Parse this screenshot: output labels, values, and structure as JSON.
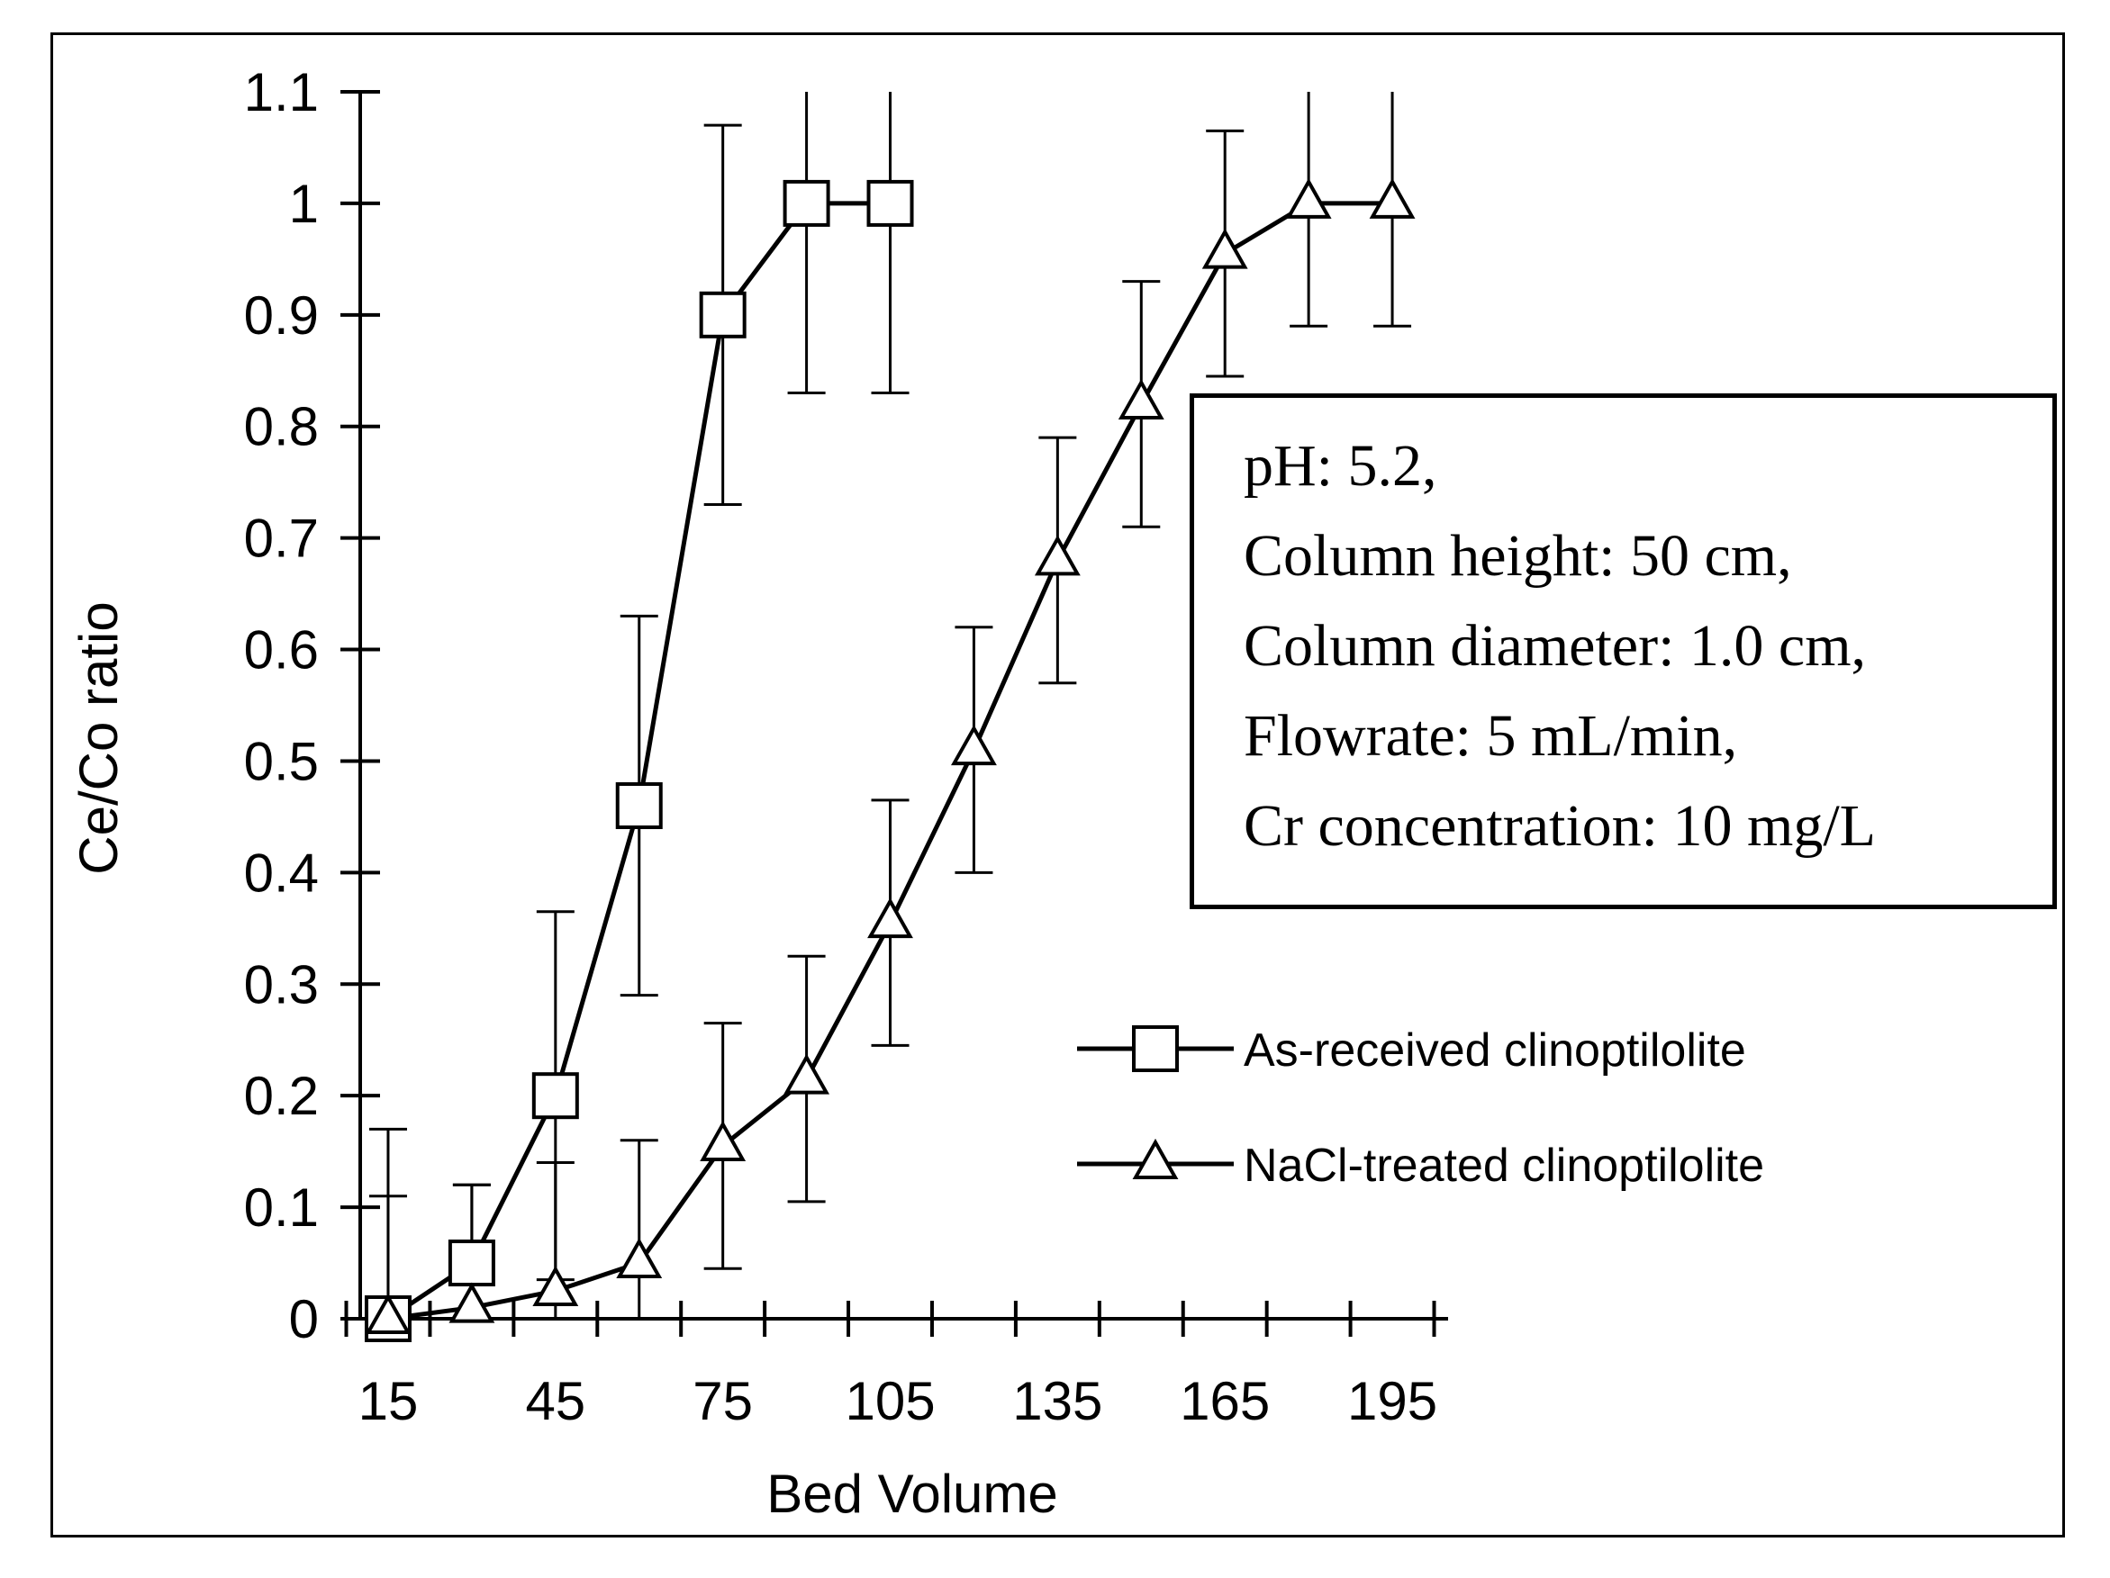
{
  "chart_data": {
    "type": "line",
    "title": "",
    "xlabel": "Bed Volume",
    "ylabel": "Ce/Co ratio",
    "xlim": [
      10,
      205
    ],
    "ylim": [
      0,
      1.1
    ],
    "xticks": [
      15,
      45,
      75,
      105,
      135,
      165,
      195
    ],
    "yticks": [
      0,
      0.1,
      0.2,
      0.3,
      0.4,
      0.5,
      0.6,
      0.7,
      0.8,
      0.9,
      1,
      1.1
    ],
    "ytick_labels": [
      "0",
      "0.1",
      "0.2",
      "0.3",
      "0.4",
      "0.5",
      "0.6",
      "0.7",
      "0.8",
      "0.9",
      "1",
      "1.1"
    ],
    "legend_position": "bottom-right",
    "series": [
      {
        "name": "As-received clinoptilolite",
        "marker": "square",
        "x": [
          15,
          30,
          45,
          60,
          75,
          90,
          105
        ],
        "y": [
          0,
          0.05,
          0.2,
          0.46,
          0.9,
          1.0,
          1.0
        ],
        "err": [
          0.11,
          0.07,
          0.165,
          0.17,
          0.17,
          0.17,
          0.17
        ]
      },
      {
        "name": "NaCl-treated clinoptilolite",
        "marker": "triangle",
        "x": [
          15,
          30,
          45,
          60,
          75,
          90,
          105,
          120,
          135,
          150,
          165,
          180,
          195
        ],
        "y": [
          0,
          0.01,
          0.025,
          0.05,
          0.155,
          0.215,
          0.355,
          0.51,
          0.68,
          0.82,
          0.955,
          1.0,
          1.0
        ],
        "err": [
          0.17,
          0.11,
          0.115,
          0.11,
          0.11,
          0.11,
          0.11,
          0.11,
          0.11,
          0.11,
          0.11,
          0.11,
          0.11
        ]
      }
    ],
    "annotation": [
      "pH: 5.2,",
      "Column height: 50 cm,",
      "Column diameter: 1.0 cm,",
      "Flowrate: 5 mL/min,",
      "Cr concentration: 10 mg/L"
    ]
  }
}
